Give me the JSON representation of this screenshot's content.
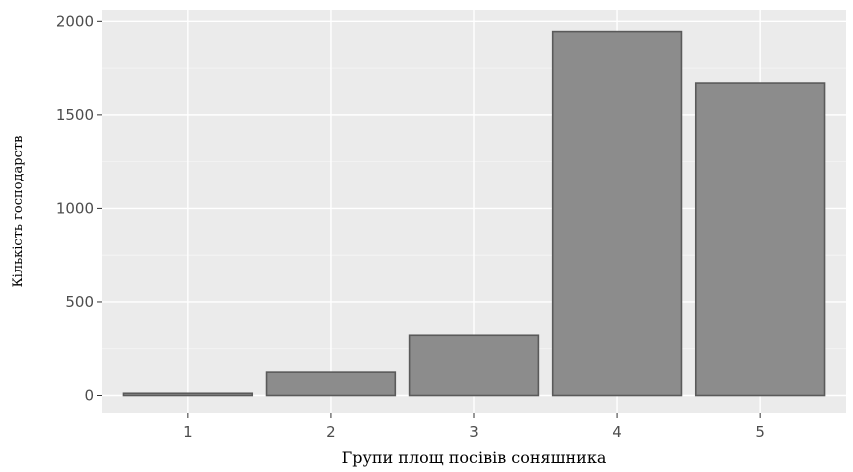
{
  "chart_data": {
    "type": "bar",
    "title": "",
    "xlabel": "Групи площ посівів соняшника",
    "ylabel": "Кількість господарств",
    "categories": [
      "1",
      "2",
      "3",
      "4",
      "5"
    ],
    "values": [
      12,
      125,
      322,
      1945,
      1670
    ],
    "ylim": [
      0,
      2000
    ],
    "yticks": [
      0,
      500,
      1000,
      1500,
      2000
    ],
    "grid": true,
    "legend": "none",
    "colors": {
      "panel_background": "#ebebeb",
      "grid_major": "#ffffff",
      "grid_minor": "#f5f5f5",
      "bar_fill": "#8c8c8c",
      "bar_stroke": "#5a5a5a",
      "tick_text": "#4d4d4d",
      "title_text": "#000000"
    }
  }
}
